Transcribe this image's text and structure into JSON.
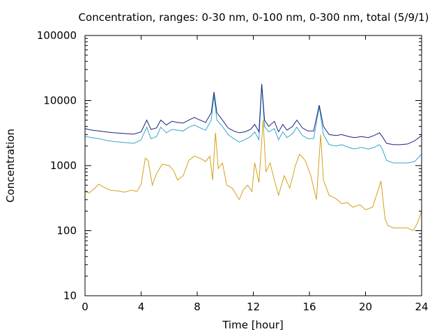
{
  "chart_data": {
    "type": "line",
    "title": "Concentration, ranges: 0-30 nm, 0-100 nm, 0-300 nm, total (5/9/1)",
    "xlabel": "Time [hour]",
    "ylabel": "Concentration",
    "xlim": [
      0,
      24
    ],
    "ylim": [
      10,
      100000
    ],
    "yscale": "log",
    "xticks": [
      "0",
      "4",
      "8",
      "12",
      "16",
      "20",
      "24"
    ],
    "yticks": [
      "10",
      "100",
      "1000",
      "10000",
      "100000"
    ],
    "grid": false,
    "legend": "none",
    "series": [
      {
        "color": "#d4a017",
        "points": [
          [
            0,
            400
          ],
          [
            0.3,
            380
          ],
          [
            0.7,
            450
          ],
          [
            1.0,
            520
          ],
          [
            1.3,
            470
          ],
          [
            1.8,
            420
          ],
          [
            2.3,
            410
          ],
          [
            2.8,
            390
          ],
          [
            3.3,
            420
          ],
          [
            3.7,
            400
          ],
          [
            4.0,
            520
          ],
          [
            4.3,
            1300
          ],
          [
            4.5,
            1200
          ],
          [
            4.8,
            500
          ],
          [
            5.1,
            750
          ],
          [
            5.5,
            1050
          ],
          [
            6.0,
            1000
          ],
          [
            6.3,
            850
          ],
          [
            6.6,
            600
          ],
          [
            7.0,
            700
          ],
          [
            7.4,
            1200
          ],
          [
            7.8,
            1400
          ],
          [
            8.2,
            1300
          ],
          [
            8.6,
            1150
          ],
          [
            8.9,
            1400
          ],
          [
            9.1,
            600
          ],
          [
            9.3,
            3200
          ],
          [
            9.5,
            900
          ],
          [
            9.8,
            1100
          ],
          [
            10.1,
            500
          ],
          [
            10.5,
            450
          ],
          [
            11.0,
            300
          ],
          [
            11.3,
            430
          ],
          [
            11.6,
            500
          ],
          [
            11.9,
            400
          ],
          [
            12.1,
            1100
          ],
          [
            12.4,
            550
          ],
          [
            12.7,
            5000
          ],
          [
            12.9,
            800
          ],
          [
            13.2,
            1100
          ],
          [
            13.5,
            600
          ],
          [
            13.8,
            350
          ],
          [
            14.2,
            700
          ],
          [
            14.6,
            450
          ],
          [
            15.0,
            1000
          ],
          [
            15.3,
            1500
          ],
          [
            15.7,
            1200
          ],
          [
            16.1,
            700
          ],
          [
            16.5,
            300
          ],
          [
            16.8,
            3000
          ],
          [
            17.0,
            600
          ],
          [
            17.4,
            350
          ],
          [
            17.9,
            310
          ],
          [
            18.3,
            260
          ],
          [
            18.7,
            270
          ],
          [
            19.1,
            230
          ],
          [
            19.6,
            250
          ],
          [
            20.0,
            210
          ],
          [
            20.5,
            230
          ],
          [
            20.9,
            420
          ],
          [
            21.1,
            580
          ],
          [
            21.4,
            150
          ],
          [
            21.6,
            120
          ],
          [
            22.0,
            110
          ],
          [
            22.5,
            110
          ],
          [
            23.0,
            110
          ],
          [
            23.4,
            100
          ],
          [
            23.7,
            130
          ],
          [
            24.0,
            200
          ]
        ]
      },
      {
        "color": "#33a6cc",
        "points": [
          [
            0,
            2800
          ],
          [
            0.5,
            2700
          ],
          [
            1.0,
            2600
          ],
          [
            1.5,
            2450
          ],
          [
            2.0,
            2350
          ],
          [
            2.5,
            2300
          ],
          [
            3.0,
            2250
          ],
          [
            3.5,
            2200
          ],
          [
            4.0,
            2500
          ],
          [
            4.4,
            3900
          ],
          [
            4.7,
            2600
          ],
          [
            5.1,
            2800
          ],
          [
            5.4,
            3900
          ],
          [
            5.8,
            3200
          ],
          [
            6.2,
            3600
          ],
          [
            6.6,
            3500
          ],
          [
            7.0,
            3400
          ],
          [
            7.4,
            3900
          ],
          [
            7.8,
            4200
          ],
          [
            8.2,
            3800
          ],
          [
            8.6,
            3500
          ],
          [
            9.0,
            5000
          ],
          [
            9.2,
            12000
          ],
          [
            9.4,
            5000
          ],
          [
            9.8,
            4000
          ],
          [
            10.2,
            3000
          ],
          [
            10.6,
            2600
          ],
          [
            11.0,
            2300
          ],
          [
            11.4,
            2500
          ],
          [
            11.8,
            2800
          ],
          [
            12.1,
            3300
          ],
          [
            12.4,
            2500
          ],
          [
            12.6,
            17000
          ],
          [
            12.8,
            4000
          ],
          [
            13.1,
            3300
          ],
          [
            13.5,
            3700
          ],
          [
            13.8,
            2500
          ],
          [
            14.1,
            3300
          ],
          [
            14.4,
            2700
          ],
          [
            14.8,
            3100
          ],
          [
            15.1,
            3900
          ],
          [
            15.5,
            2900
          ],
          [
            15.9,
            2600
          ],
          [
            16.3,
            2600
          ],
          [
            16.7,
            8000
          ],
          [
            17.0,
            3000
          ],
          [
            17.4,
            2100
          ],
          [
            17.9,
            2000
          ],
          [
            18.3,
            2100
          ],
          [
            18.8,
            1900
          ],
          [
            19.2,
            1800
          ],
          [
            19.7,
            1900
          ],
          [
            20.2,
            1800
          ],
          [
            20.6,
            1900
          ],
          [
            21.0,
            2100
          ],
          [
            21.2,
            1800
          ],
          [
            21.5,
            1200
          ],
          [
            22.0,
            1100
          ],
          [
            22.5,
            1100
          ],
          [
            23.0,
            1100
          ],
          [
            23.5,
            1150
          ],
          [
            24.0,
            1500
          ]
        ]
      },
      {
        "color": "#1a237e",
        "points": [
          [
            0,
            3700
          ],
          [
            0.5,
            3500
          ],
          [
            1.0,
            3400
          ],
          [
            1.5,
            3300
          ],
          [
            2.0,
            3200
          ],
          [
            2.5,
            3150
          ],
          [
            3.0,
            3100
          ],
          [
            3.5,
            3050
          ],
          [
            4.0,
            3300
          ],
          [
            4.4,
            5000
          ],
          [
            4.7,
            3600
          ],
          [
            5.1,
            3800
          ],
          [
            5.4,
            5000
          ],
          [
            5.8,
            4200
          ],
          [
            6.2,
            4800
          ],
          [
            6.6,
            4600
          ],
          [
            7.0,
            4500
          ],
          [
            7.4,
            5000
          ],
          [
            7.8,
            5500
          ],
          [
            8.2,
            5000
          ],
          [
            8.6,
            4600
          ],
          [
            9.0,
            6500
          ],
          [
            9.2,
            13500
          ],
          [
            9.4,
            6500
          ],
          [
            9.8,
            5000
          ],
          [
            10.2,
            3800
          ],
          [
            10.6,
            3400
          ],
          [
            11.0,
            3200
          ],
          [
            11.4,
            3300
          ],
          [
            11.8,
            3600
          ],
          [
            12.1,
            4300
          ],
          [
            12.4,
            3300
          ],
          [
            12.6,
            18000
          ],
          [
            12.8,
            5000
          ],
          [
            13.1,
            4000
          ],
          [
            13.5,
            4800
          ],
          [
            13.8,
            3300
          ],
          [
            14.1,
            4300
          ],
          [
            14.4,
            3500
          ],
          [
            14.8,
            4000
          ],
          [
            15.1,
            5000
          ],
          [
            15.5,
            3800
          ],
          [
            15.9,
            3400
          ],
          [
            16.3,
            3400
          ],
          [
            16.7,
            8500
          ],
          [
            17.0,
            4000
          ],
          [
            17.4,
            3000
          ],
          [
            17.9,
            2900
          ],
          [
            18.3,
            3000
          ],
          [
            18.8,
            2800
          ],
          [
            19.2,
            2700
          ],
          [
            19.7,
            2800
          ],
          [
            20.2,
            2700
          ],
          [
            20.6,
            2900
          ],
          [
            21.0,
            3200
          ],
          [
            21.2,
            2800
          ],
          [
            21.5,
            2200
          ],
          [
            22.0,
            2100
          ],
          [
            22.5,
            2100
          ],
          [
            23.0,
            2150
          ],
          [
            23.5,
            2400
          ],
          [
            24.0,
            2900
          ]
        ]
      }
    ]
  }
}
